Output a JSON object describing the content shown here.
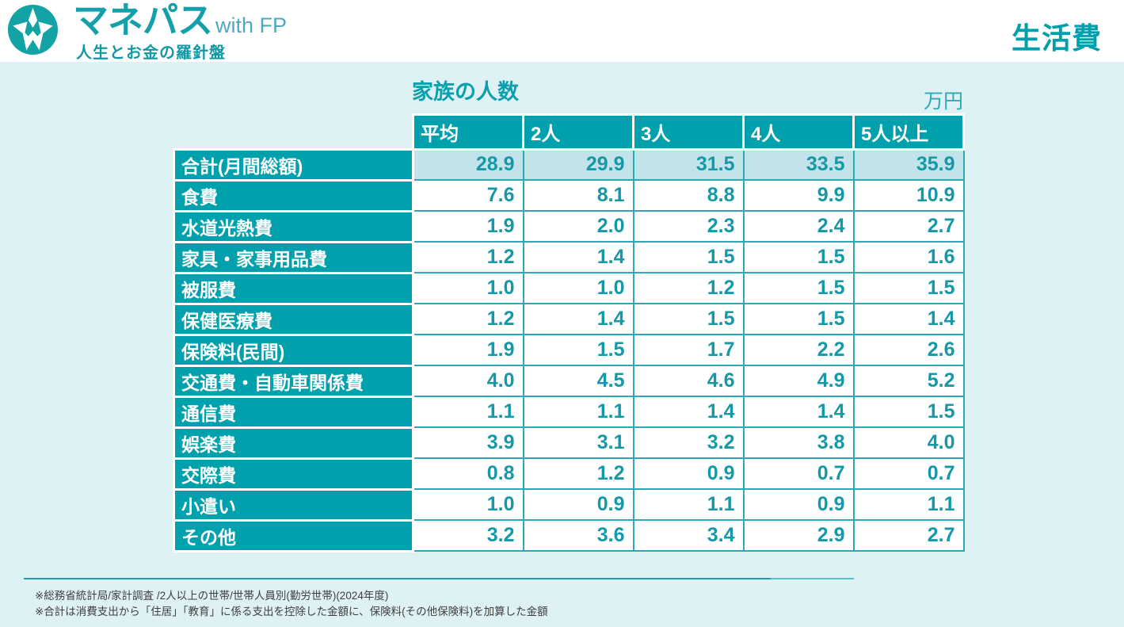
{
  "header": {
    "brand": "マネパス",
    "brand_suffix": "with FP",
    "tagline": "人生とお金の羅針盤",
    "page_title": "生活費",
    "logo_icon": "compass-star-icon"
  },
  "chart_data": {
    "type": "table",
    "title": "家族の人数",
    "unit": "万円",
    "columns": [
      "平均",
      "2人",
      "3人",
      "4人",
      "5人以上"
    ],
    "rows": [
      {
        "label": "合計(月間総額)",
        "values": [
          "28.9",
          "29.9",
          "31.5",
          "33.5",
          "35.9"
        ],
        "highlight": true
      },
      {
        "label": "食費",
        "values": [
          "7.6",
          "8.1",
          "8.8",
          "9.9",
          "10.9"
        ],
        "highlight": false
      },
      {
        "label": "水道光熱費",
        "values": [
          "1.9",
          "2.0",
          "2.3",
          "2.4",
          "2.7"
        ],
        "highlight": false
      },
      {
        "label": "家具・家事用品費",
        "values": [
          "1.2",
          "1.4",
          "1.5",
          "1.5",
          "1.6"
        ],
        "highlight": false
      },
      {
        "label": "被服費",
        "values": [
          "1.0",
          "1.0",
          "1.2",
          "1.5",
          "1.5"
        ],
        "highlight": false
      },
      {
        "label": "保健医療費",
        "values": [
          "1.2",
          "1.4",
          "1.5",
          "1.5",
          "1.4"
        ],
        "highlight": false
      },
      {
        "label": "保険料(民間)",
        "values": [
          "1.9",
          "1.5",
          "1.7",
          "2.2",
          "2.6"
        ],
        "highlight": false
      },
      {
        "label": "交通費・自動車関係費",
        "values": [
          "4.0",
          "4.5",
          "4.6",
          "4.9",
          "5.2"
        ],
        "highlight": false
      },
      {
        "label": "通信費",
        "values": [
          "1.1",
          "1.1",
          "1.4",
          "1.4",
          "1.5"
        ],
        "highlight": false
      },
      {
        "label": "娯楽費",
        "values": [
          "3.9",
          "3.1",
          "3.2",
          "3.8",
          "4.0"
        ],
        "highlight": false
      },
      {
        "label": "交際費",
        "values": [
          "0.8",
          "1.2",
          "0.9",
          "0.7",
          "0.7"
        ],
        "highlight": false
      },
      {
        "label": "小遣い",
        "values": [
          "1.0",
          "0.9",
          "1.1",
          "0.9",
          "1.1"
        ],
        "highlight": false
      },
      {
        "label": "その他",
        "values": [
          "3.2",
          "3.6",
          "3.4",
          "2.9",
          "2.7"
        ],
        "highlight": false
      }
    ]
  },
  "footnotes": [
    "※総務省統計局/家計調査 /2人以上の世帯/世帯人員別(勤労世帯)(2024年度)",
    "※合計は消費支出から「住居」「教育」に係る支出を控除した金額に、保険料(その他保険料)を加算した金額"
  ],
  "colors": {
    "teal_main": "#00a1ad",
    "value_text": "#1598a8",
    "grid_teal": "#2ba9b6",
    "body_background": "#def1f5",
    "highlight_row": "#c3e3ea",
    "footnote_text": "#3f3f3f"
  }
}
